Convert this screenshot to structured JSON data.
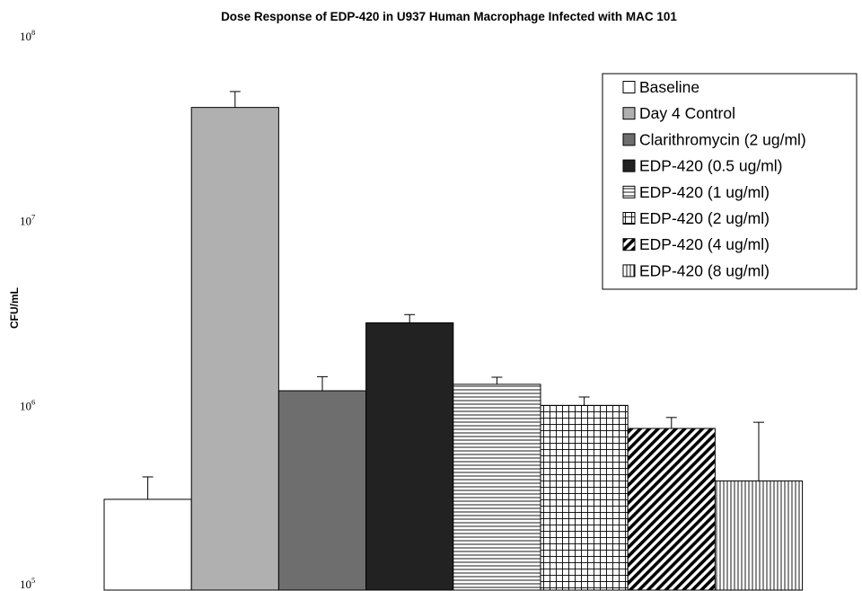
{
  "chart_data": {
    "type": "bar",
    "title": "Dose Response of EDP-420 in U937 Human Macrophage Infected with MAC 101",
    "ylabel": "CFU/mL",
    "xlabel": "",
    "yscale": "log",
    "ylim": [
      100000,
      100000000
    ],
    "y_ticks": [
      {
        "base": "10",
        "exp": "5",
        "value": 100000
      },
      {
        "base": "10",
        "exp": "6",
        "value": 1000000
      },
      {
        "base": "10",
        "exp": "7",
        "value": 10000000
      },
      {
        "base": "10",
        "exp": "8",
        "value": 100000000
      }
    ],
    "legend_position": "top-right",
    "series": [
      {
        "name": "Baseline",
        "value": 310000,
        "error": 100000,
        "color": "#ffffff",
        "pattern": "solid"
      },
      {
        "name": "Day 4 Control",
        "value": 41000000,
        "error": 9000000,
        "color": "#b0b0b0",
        "pattern": "solid"
      },
      {
        "name": "Clarithromycin (2 ug/ml)",
        "value": 1200000,
        "error": 230000,
        "color": "#6e6e6e",
        "pattern": "solid"
      },
      {
        "name": "EDP-420 (0.5 ug/ml)",
        "value": 2800000,
        "error": 300000,
        "color": "#222222",
        "pattern": "solid"
      },
      {
        "name": "EDP-420 (1 ug/ml)",
        "value": 1300000,
        "error": 120000,
        "color": "#ffffff",
        "pattern": "horizontal"
      },
      {
        "name": "EDP-420 (2 ug/ml)",
        "value": 1000000,
        "error": 110000,
        "color": "#ffffff",
        "pattern": "grid"
      },
      {
        "name": "EDP-420 (4 ug/ml)",
        "value": 750000,
        "error": 110000,
        "color": "#ffffff",
        "pattern": "diagonal"
      },
      {
        "name": "EDP-420 (8 ug/ml)",
        "value": 390000,
        "error": 420000,
        "color": "#ffffff",
        "pattern": "vertical"
      }
    ]
  }
}
